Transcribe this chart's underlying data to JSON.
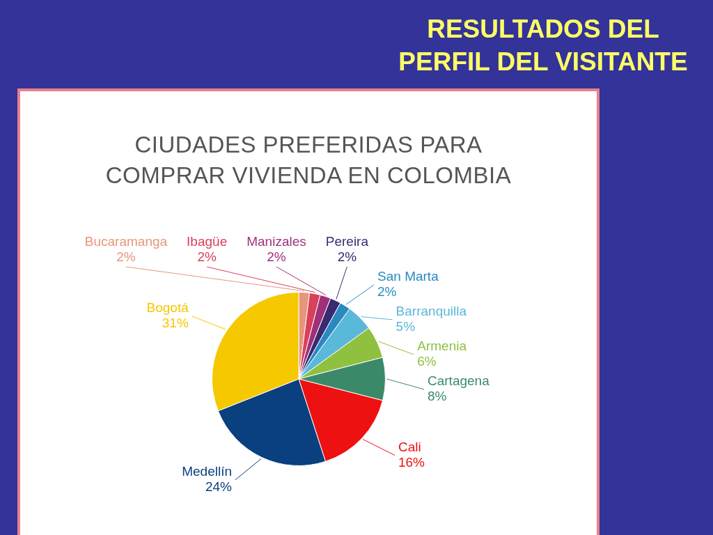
{
  "chart_data": {
    "type": "pie",
    "title": "RESULTADOS DEL\nPERFIL DEL VISITANTE",
    "subtitle": "CIUDADES PREFERIDAS PARA\nCOMPRAR VIVIENDA EN COLOMBIA",
    "categories": [
      "Bucaramanga",
      "Ibagüe",
      "Manizales",
      "Pereira",
      "San Marta",
      "Barranquilla",
      "Armenia",
      "Cartagena",
      "Cali",
      "Medellín",
      "Bogotá"
    ],
    "values": [
      2,
      2,
      2,
      2,
      2,
      5,
      6,
      8,
      16,
      24,
      31
    ],
    "value_labels": [
      "2%",
      "2%",
      "2%",
      "2%",
      "2%",
      "5%",
      "6%",
      "8%",
      "16%",
      "24%",
      "31%"
    ],
    "colors": [
      "#e8967a",
      "#d9405a",
      "#a0307a",
      "#3a2a70",
      "#2a8ac0",
      "#5ab8d8",
      "#90c040",
      "#3a8a6a",
      "#ee1111",
      "#0a3f80",
      "#f5c800"
    ]
  }
}
